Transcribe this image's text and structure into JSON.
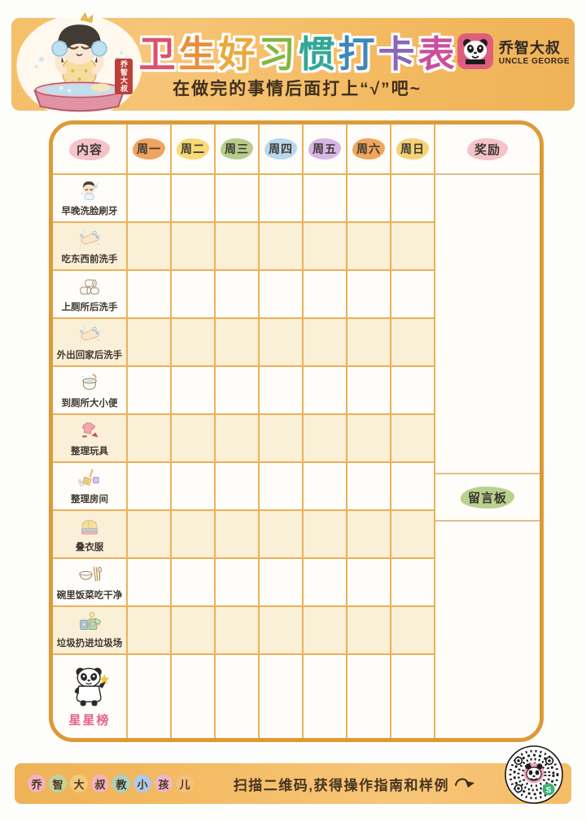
{
  "page": {
    "background_color": "#fdfdfb",
    "band_color": "#f3ba61",
    "table_border_color": "#dd9a35",
    "grid_line_color": "#ecb158",
    "stripe_color": "#faefd7"
  },
  "header": {
    "title": "卫生好习惯打卡表",
    "title_chars": [
      {
        "char": "卫",
        "color": "#d9536e"
      },
      {
        "char": "生",
        "color": "#e78f3c"
      },
      {
        "char": "好",
        "color": "#e9a93d"
      },
      {
        "char": "习",
        "color": "#85b544"
      },
      {
        "char": "惯",
        "color": "#33a796"
      },
      {
        "char": "打",
        "color": "#3d87bd"
      },
      {
        "char": "卡",
        "color": "#8a67b8"
      },
      {
        "char": "表",
        "color": "#c94f9d"
      }
    ],
    "subtitle": "在做完的事情后面打上“√”吧~",
    "logo": {
      "name_cn": "乔智大叔",
      "name_en": "UNCLE GEORGE"
    },
    "seal_text": "乔智大叔"
  },
  "table": {
    "content_header": {
      "label": "内容",
      "color": "#f6c3ca"
    },
    "day_headers": [
      {
        "label": "周一",
        "color": "#efa45f"
      },
      {
        "label": "周二",
        "color": "#f7da76"
      },
      {
        "label": "周三",
        "color": "#b7cd8d"
      },
      {
        "label": "周四",
        "color": "#b9d8ee"
      },
      {
        "label": "周五",
        "color": "#d7b6e6"
      },
      {
        "label": "周六",
        "color": "#eda65e"
      },
      {
        "label": "周日",
        "color": "#f3d376"
      }
    ],
    "reward_header": {
      "label": "奖励",
      "color": "#f6c3ca"
    },
    "message_board": {
      "label": "留言板",
      "color": "#b9d18f"
    },
    "rows": [
      {
        "label": "早晚洗脸刷牙",
        "icon": "face-wash-icon"
      },
      {
        "label": "吃东西前洗手",
        "icon": "hand-wash-icon"
      },
      {
        "label": "上厕所后洗手",
        "icon": "toilet-paper-icon"
      },
      {
        "label": "外出回家后洗手",
        "icon": "hand-wash-icon"
      },
      {
        "label": "到厕所大小便",
        "icon": "toilet-icon"
      },
      {
        "label": "整理玩具",
        "icon": "toys-icon"
      },
      {
        "label": "整理房间",
        "icon": "clean-room-icon"
      },
      {
        "label": "叠衣服",
        "icon": "fold-clothes-icon"
      },
      {
        "label": "碗里饭菜吃干净",
        "icon": "bowl-chopsticks-icon"
      },
      {
        "label": "垃圾扔进垃圾场",
        "icon": "trash-bin-icon"
      },
      {
        "label": "星星榜",
        "icon": "panda-star-icon",
        "highlight_color": "#e7638e"
      }
    ]
  },
  "footer": {
    "brand_chars": [
      {
        "char": "乔",
        "color": "#f2b3c1"
      },
      {
        "char": "智",
        "color": "#bdd39b"
      },
      {
        "char": "大",
        "color": "#f2ca79"
      },
      {
        "char": "叔",
        "color": "#f2b3c1"
      },
      {
        "char": "教",
        "color": "#a5d2c3"
      },
      {
        "char": "小",
        "color": "#aecbe9"
      },
      {
        "char": "孩",
        "color": "#f0b6c6"
      },
      {
        "char": "儿",
        "color": "#f4c07e"
      }
    ],
    "scan_text": "扫描二维码,获得操作指南和样例",
    "qr_badge_letter": "S"
  }
}
